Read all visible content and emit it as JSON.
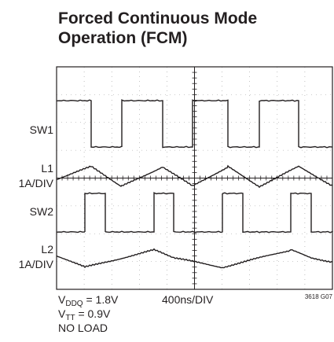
{
  "title_lines": [
    "Forced Continuous Mode",
    "Operation (FCM)"
  ],
  "trace_labels": {
    "sw1": "SW1",
    "l1": "L1",
    "l1_scale": "1A/DIV",
    "sw2": "SW2",
    "l2": "L2",
    "l2_scale": "1A/DIV"
  },
  "footer": {
    "vddq_v": "V",
    "vddq_sub": "DDQ",
    "vddq_val": " = 1.8V",
    "timebase": "400ns/DIV",
    "vtt_v": "V",
    "vtt_sub": "TT",
    "vtt_val": " = 0.9V",
    "load": "NO LOAD",
    "fig_id": "3618 G07"
  }
}
